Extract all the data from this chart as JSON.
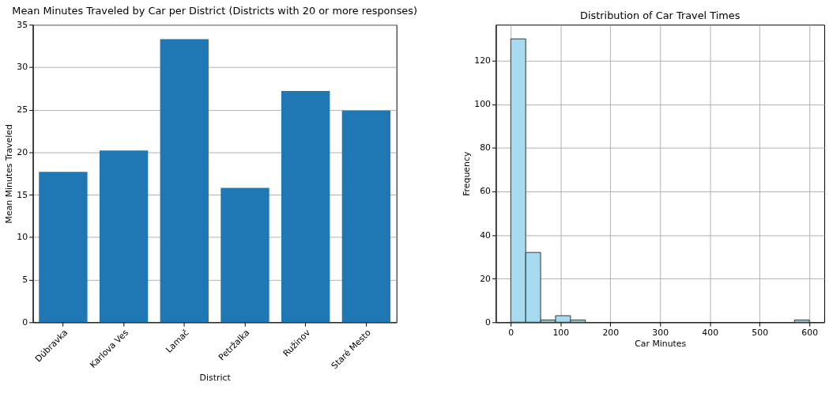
{
  "chart_data": [
    {
      "type": "bar",
      "title": "Mean Minutes Traveled by Car per District (Districts with 20 or more responses)",
      "xlabel": "District",
      "ylabel": "Mean Minutes Traveled",
      "categories": [
        "Dúbravka",
        "Karlova Ves",
        "Lamač",
        "Petržalka",
        "Ružinov",
        "Staré Mesto"
      ],
      "values": [
        17.7,
        20.2,
        33.3,
        15.8,
        27.2,
        24.9
      ],
      "color": "#1f77b4",
      "ylim": [
        0,
        35
      ],
      "yticks": [
        0,
        5,
        10,
        15,
        20,
        25,
        30,
        35
      ],
      "grid": "y"
    },
    {
      "type": "histogram",
      "title": "Distribution of Car Travel Times",
      "xlabel": "Car Minutes",
      "ylabel": "Frequency",
      "bins": [
        0,
        30,
        60,
        90,
        120,
        150,
        180,
        210,
        240,
        270,
        300,
        330,
        360,
        390,
        420,
        450,
        480,
        510,
        540,
        570,
        600
      ],
      "values": [
        130,
        32,
        1,
        3,
        1,
        0,
        0,
        0,
        0,
        0,
        0,
        0,
        0,
        0,
        0,
        0,
        0,
        0,
        0,
        1
      ],
      "color": "#a6daee",
      "xlim": [
        -30,
        630
      ],
      "xticks": [
        0,
        100,
        200,
        300,
        400,
        500,
        600
      ],
      "ylim": [
        0,
        136.5
      ],
      "yticks": [
        0,
        20,
        40,
        60,
        80,
        100,
        120
      ],
      "grid": true
    }
  ]
}
